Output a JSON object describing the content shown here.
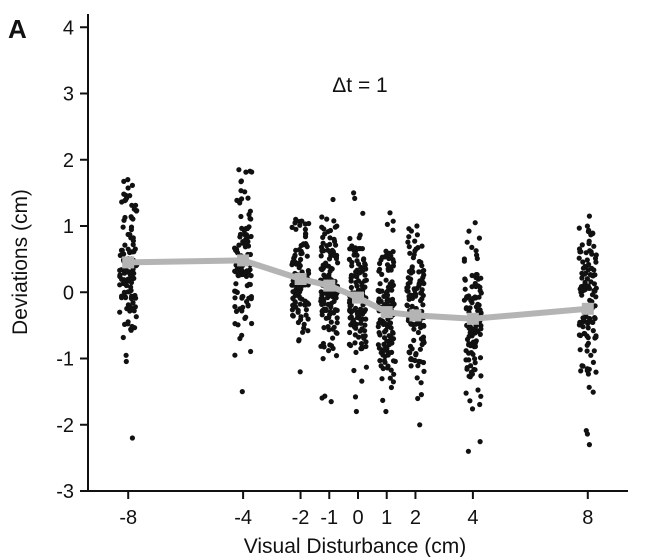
{
  "panel_label": "A",
  "colors": {
    "points": "#111111",
    "mean_line": "#b4b4b4",
    "axis": "#111111"
  },
  "chart_data": {
    "type": "scatter",
    "xlabel": "Visual Disturbance (cm)",
    "ylabel": "Deviations (cm)",
    "annotation": "Δt = 1",
    "xlim": [
      -9.4,
      9.4
    ],
    "ylim": [
      -3,
      4.2
    ],
    "xticks": [
      -8,
      -4,
      -2,
      -1,
      0,
      1,
      2,
      4,
      8
    ],
    "yticks": [
      -3,
      -2,
      -1,
      0,
      1,
      2,
      3,
      4
    ],
    "grid": false,
    "legend": "none",
    "mean_series": {
      "x": [
        -8,
        -4,
        -2,
        -1,
        0,
        1,
        2,
        4,
        8
      ],
      "y": [
        0.45,
        0.48,
        0.2,
        0.1,
        -0.08,
        -0.3,
        -0.35,
        -0.4,
        -0.25
      ]
    },
    "scatter_groups": [
      {
        "x": -8,
        "mean": 0.45,
        "sd": 0.62,
        "n": 110,
        "min": -2.2,
        "max": 1.7
      },
      {
        "x": -4,
        "mean": 0.48,
        "sd": 0.62,
        "n": 100,
        "min": -1.5,
        "max": 1.85
      },
      {
        "x": -2,
        "mean": 0.2,
        "sd": 0.45,
        "n": 110,
        "min": -1.2,
        "max": 1.1
      },
      {
        "x": -1,
        "mean": 0.1,
        "sd": 0.5,
        "n": 130,
        "min": -1.65,
        "max": 1.4
      },
      {
        "x": 0,
        "mean": -0.08,
        "sd": 0.5,
        "n": 130,
        "min": -1.8,
        "max": 1.5
      },
      {
        "x": 1,
        "mean": -0.3,
        "sd": 0.55,
        "n": 130,
        "min": -1.8,
        "max": 1.2
      },
      {
        "x": 2,
        "mean": -0.35,
        "sd": 0.6,
        "n": 120,
        "min": -2.0,
        "max": 1.0
      },
      {
        "x": 4,
        "mean": -0.4,
        "sd": 0.65,
        "n": 115,
        "min": -2.4,
        "max": 1.05
      },
      {
        "x": 8,
        "mean": -0.25,
        "sd": 0.65,
        "n": 115,
        "min": -2.3,
        "max": 1.15
      }
    ]
  }
}
